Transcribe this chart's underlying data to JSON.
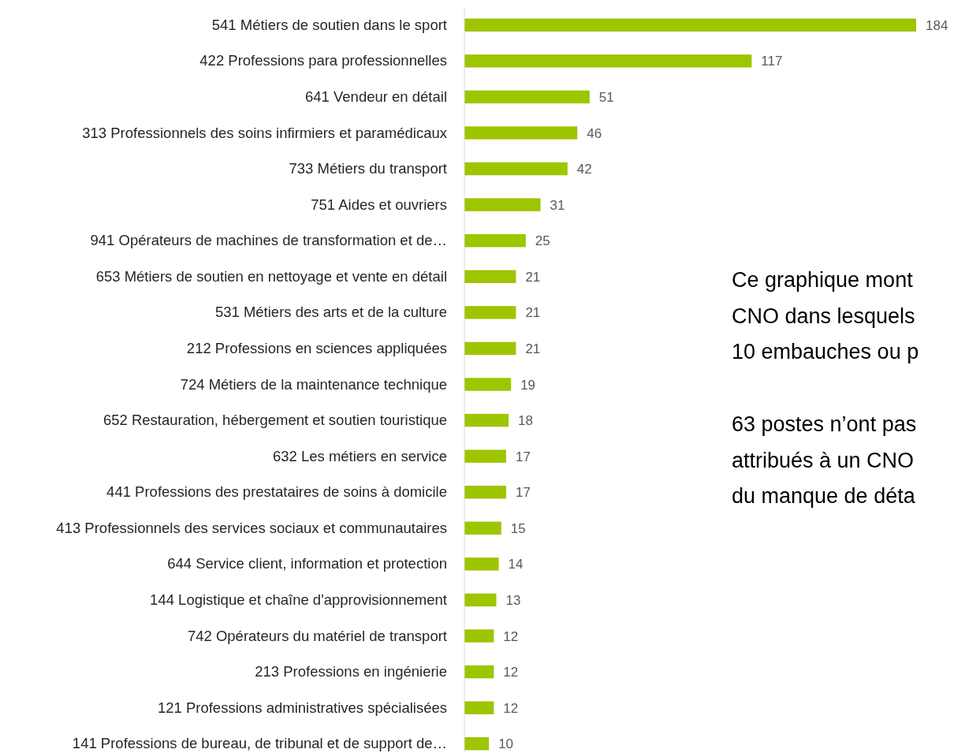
{
  "chart_data": {
    "type": "bar",
    "orientation": "horizontal",
    "color": "#9dc500",
    "data_labels": true,
    "categories": [
      "541 Métiers de soutien dans le sport",
      "422 Professions para professionnelles",
      "641 Vendeur en détail",
      "313 Professionnels des soins infirmiers et paramédicaux",
      "733 Métiers du transport",
      "751 Aides et ouvriers",
      "941 Opérateurs de machines de transformation et de…",
      "653 Métiers de soutien en nettoyage et vente en détail",
      "531 Métiers des arts et de la culture",
      "212 Professions en sciences appliquées",
      "724 Métiers de la maintenance technique",
      "652 Restauration, hébergement et soutien touristique",
      "632 Les métiers en service",
      "441 Professions des prestataires de soins à domicile",
      "413 Professionnels des services sociaux et communautaires",
      "644 Service client, information et protection",
      "144 Logistique et chaîne d'approvisionnement",
      "742 Opérateurs du matériel de transport",
      "213 Professions en ingénierie",
      "121 Professions administratives spécialisées",
      "141 Professions de bureau, de tribunal et de support de…"
    ],
    "values": [
      184,
      117,
      51,
      46,
      42,
      31,
      25,
      21,
      21,
      21,
      19,
      18,
      17,
      17,
      15,
      14,
      13,
      12,
      12,
      12,
      10
    ],
    "annotations": [
      "Ce graphique mont\nCNO dans lesquels\n10 embauches ou p",
      "63 postes n’ont pas\nattribués à un CNO\ndu manque de déta"
    ]
  }
}
